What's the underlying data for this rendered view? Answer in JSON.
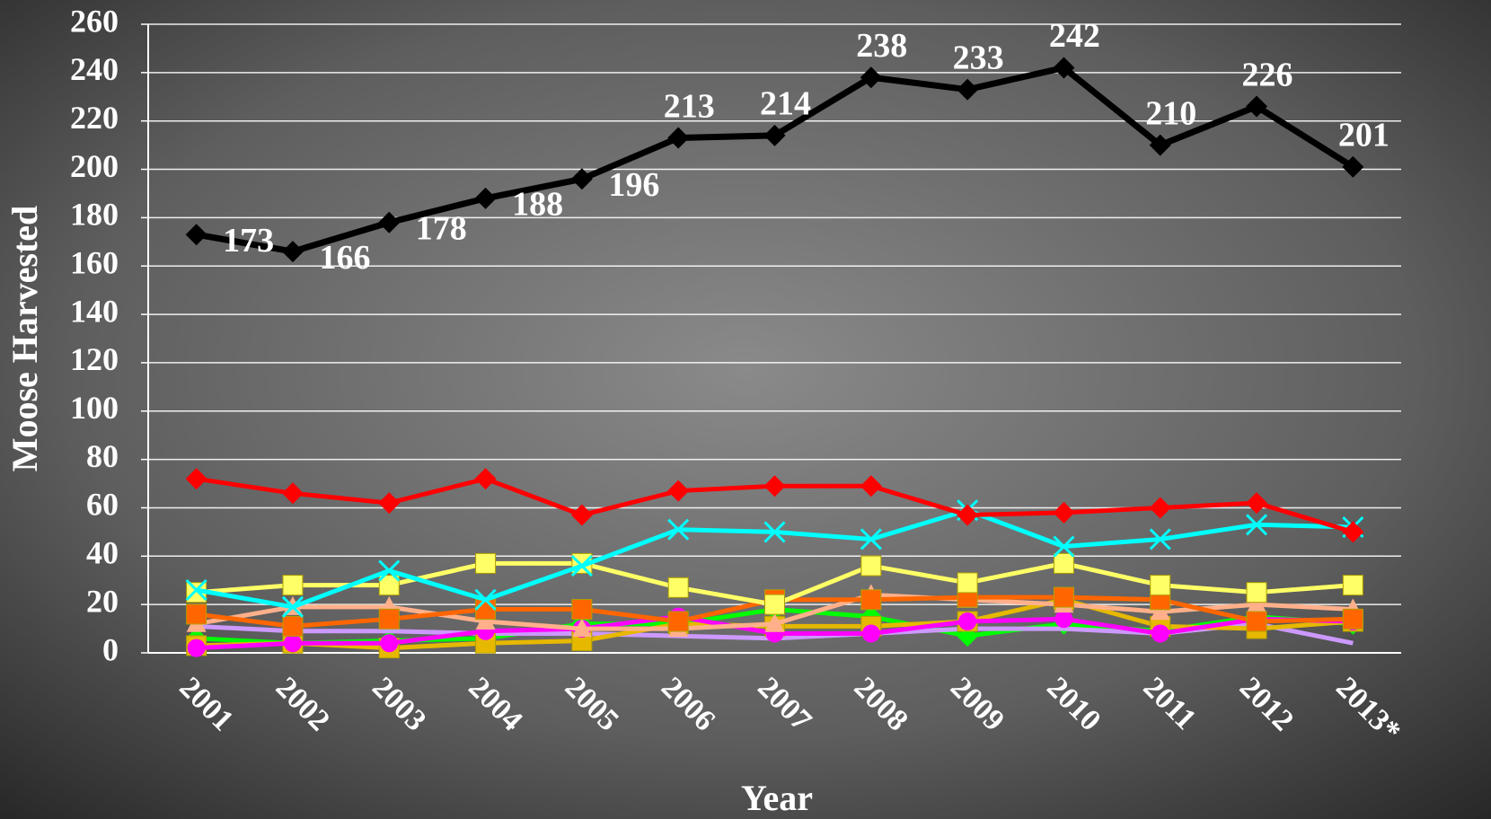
{
  "chart_data": {
    "type": "line",
    "xlabel": "Year",
    "ylabel": "Moose Harvested",
    "categories": [
      "2001",
      "2002",
      "2003",
      "2004",
      "2005",
      "2006",
      "2007",
      "2008",
      "2009",
      "2010",
      "2011",
      "2012",
      "2013*"
    ],
    "ylim": [
      0,
      260
    ],
    "yticks": [
      0,
      20,
      40,
      60,
      80,
      100,
      120,
      140,
      160,
      180,
      200,
      220,
      240,
      260
    ],
    "grid": true,
    "series": [
      {
        "color": "#000000",
        "marker": "diamond",
        "data_labels": true,
        "values": [
          173,
          166,
          178,
          188,
          196,
          213,
          214,
          238,
          233,
          242,
          210,
          226,
          201
        ]
      },
      {
        "color": "#ff0000",
        "marker": "diamond",
        "values": [
          72,
          66,
          62,
          72,
          57,
          67,
          69,
          69,
          57,
          58,
          60,
          62,
          50
        ]
      },
      {
        "color": "#00ffff",
        "marker": "x",
        "values": [
          26,
          19,
          34,
          22,
          36,
          51,
          50,
          47,
          59,
          44,
          47,
          53,
          52
        ]
      },
      {
        "color": "#ffff66",
        "marker": "square",
        "values": [
          25,
          28,
          28,
          37,
          37,
          27,
          20,
          36,
          29,
          37,
          28,
          25,
          28
        ]
      },
      {
        "color": "#ff6600",
        "marker": "square",
        "values": [
          16,
          11,
          14,
          18,
          18,
          13,
          22,
          22,
          23,
          23,
          22,
          13,
          14
        ]
      },
      {
        "color": "#ffb08a",
        "marker": "triangle",
        "values": [
          12,
          19,
          19,
          13,
          10,
          10,
          12,
          24,
          22,
          20,
          17,
          20,
          18
        ]
      },
      {
        "color": "#ff00ff",
        "marker": "circle",
        "values": [
          2,
          4,
          4,
          9,
          10,
          15,
          8,
          8,
          13,
          14,
          8,
          14,
          13
        ]
      },
      {
        "color": "#e6b800",
        "marker": "square",
        "values": [
          3,
          4,
          2,
          4,
          5,
          12,
          11,
          11,
          13,
          22,
          11,
          10,
          13
        ]
      },
      {
        "color": "#cc99ff",
        "marker": "none",
        "values": [
          11,
          9,
          9,
          8,
          8,
          7,
          6,
          8,
          10,
          10,
          8,
          12,
          4
        ]
      },
      {
        "color": "#00ff00",
        "marker": "diamond",
        "values": [
          6,
          4,
          5,
          6,
          12,
          12,
          18,
          15,
          7,
          12,
          9,
          15,
          12
        ]
      }
    ]
  }
}
